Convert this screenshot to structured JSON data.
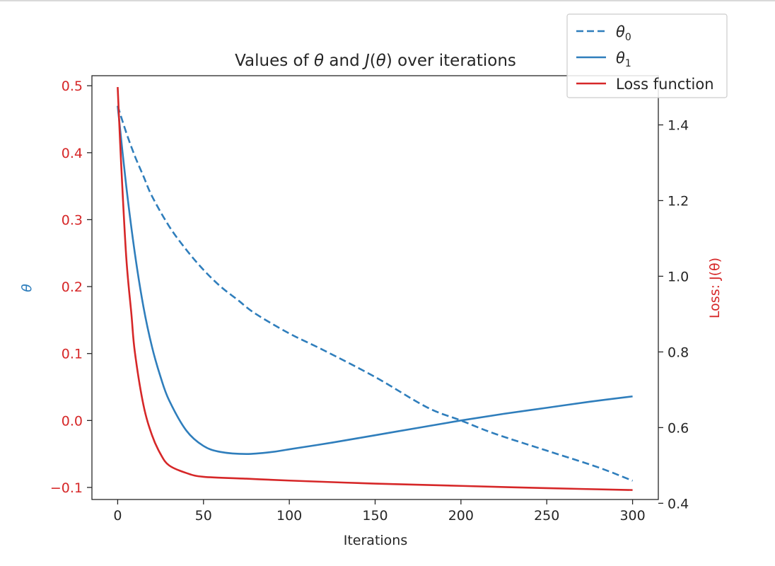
{
  "chart_data": {
    "type": "line",
    "title": {
      "prefix": "Values of ",
      "theta": "θ",
      "middle": " and ",
      "loss_j": "J",
      "loss_open": "(",
      "loss_theta": "θ",
      "loss_close": ")",
      "suffix": " over iterations"
    },
    "xlabel": "Iterations",
    "ylabel_left": "θ",
    "ylabel_right": "Loss: J(θ)",
    "xlim": [
      -15,
      315
    ],
    "ylim_left": [
      -0.118,
      0.515
    ],
    "ylim_right": [
      0.41,
      1.53
    ],
    "x_ticks": [
      0,
      50,
      100,
      150,
      200,
      250,
      300
    ],
    "x_tick_labels": [
      "0",
      "50",
      "100",
      "150",
      "200",
      "250",
      "300"
    ],
    "y_left_ticks": [
      -0.1,
      0.0,
      0.1,
      0.2,
      0.3,
      0.4,
      0.5
    ],
    "y_left_tick_labels": [
      "−0.1",
      "0.0",
      "0.1",
      "0.2",
      "0.3",
      "0.4",
      "0.5"
    ],
    "y_right_ticks": [
      0.4,
      0.6,
      0.8,
      1.0,
      1.2,
      1.4
    ],
    "y_right_tick_labels": [
      "0.4",
      "0.6",
      "0.8",
      "1.0",
      "1.2",
      "1.4"
    ],
    "legend_position": "top-right",
    "colors": {
      "theta0": "#2f7ebc",
      "theta1": "#2f7ebc",
      "loss": "#d62728",
      "left_ticks": "#d62728",
      "left_label": "#2f7ebc",
      "right_label": "#d62728",
      "right_ticks": "#262626"
    },
    "series": [
      {
        "name": "θ0",
        "axis": "left",
        "style": "dashed",
        "x": [
          0,
          5,
          10,
          15,
          20,
          30,
          40,
          50,
          60,
          70,
          80,
          100,
          120,
          150,
          180,
          200,
          220,
          250,
          280,
          300
        ],
        "y": [
          0.47,
          0.43,
          0.395,
          0.365,
          0.335,
          0.29,
          0.255,
          0.225,
          0.2,
          0.18,
          0.16,
          0.13,
          0.105,
          0.065,
          0.02,
          0.0,
          -0.02,
          -0.045,
          -0.07,
          -0.09
        ]
      },
      {
        "name": "θ1",
        "axis": "left",
        "style": "solid",
        "x": [
          0,
          5,
          10,
          15,
          20,
          25,
          30,
          40,
          50,
          60,
          75,
          90,
          100,
          125,
          150,
          175,
          200,
          225,
          250,
          275,
          300
        ],
        "y": [
          0.47,
          0.35,
          0.25,
          0.17,
          0.11,
          0.065,
          0.03,
          -0.015,
          -0.038,
          -0.047,
          -0.05,
          -0.047,
          -0.043,
          -0.033,
          -0.022,
          -0.011,
          0.0,
          0.01,
          0.019,
          0.028,
          0.036
        ]
      },
      {
        "name": "Loss function",
        "axis": "right",
        "style": "solid",
        "x": [
          0,
          2,
          5,
          8,
          10,
          15,
          20,
          25,
          30,
          40,
          50,
          75,
          100,
          150,
          200,
          250,
          300
        ],
        "y": [
          1.5,
          1.3,
          1.05,
          0.9,
          0.8,
          0.66,
          0.58,
          0.53,
          0.5,
          0.48,
          0.47,
          0.465,
          0.46,
          0.452,
          0.446,
          0.44,
          0.435
        ]
      }
    ],
    "legend": [
      {
        "base": "θ",
        "sub": "0",
        "style": "dashed",
        "color": "#2f7ebc"
      },
      {
        "base": "θ",
        "sub": "1",
        "style": "solid",
        "color": "#2f7ebc"
      },
      {
        "base": "Loss function",
        "sub": "",
        "style": "solid",
        "color": "#d62728"
      }
    ]
  }
}
